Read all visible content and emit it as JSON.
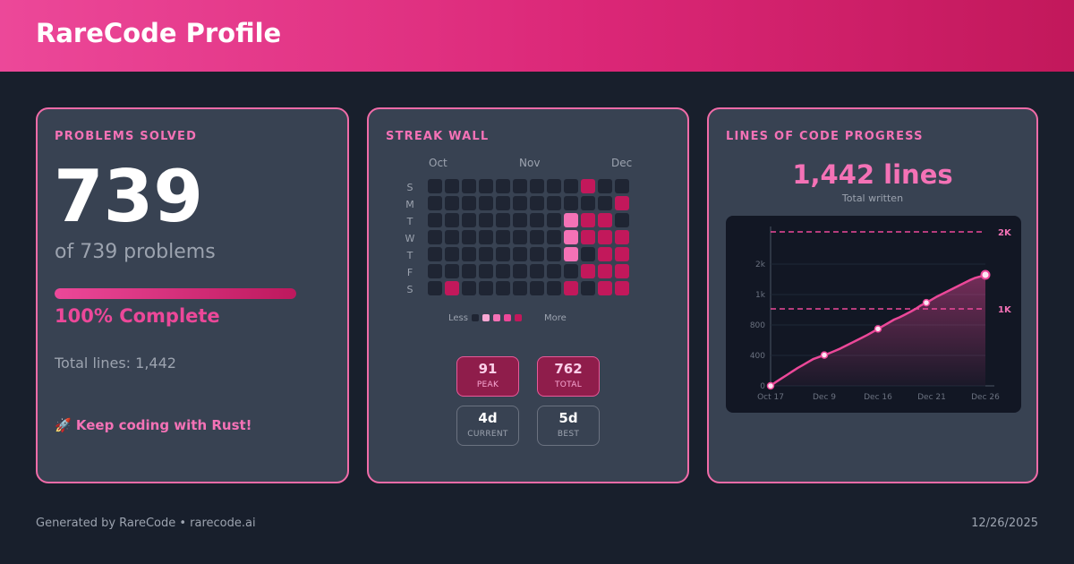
{
  "header": {
    "title": "RareCode Profile",
    "accent": "#ec4899"
  },
  "problems": {
    "title": "PROBLEMS SOLVED",
    "solved": "739",
    "of_text": "of 739 problems",
    "progress": 1.0,
    "percent_text": "100% Complete",
    "total_lines_text": "Total lines: 1,442",
    "motto": "🚀 Keep coding with Rust!"
  },
  "streak": {
    "title": "STREAK WALL",
    "months": [
      "Oct",
      "Nov",
      "Dec"
    ],
    "days": [
      "S",
      "M",
      "T",
      "W",
      "T",
      "F",
      "S"
    ],
    "grid": [
      [
        0,
        0,
        0,
        0,
        0,
        0,
        0,
        0,
        0,
        4,
        0,
        0
      ],
      [
        0,
        0,
        0,
        0,
        0,
        0,
        0,
        0,
        0,
        0,
        0,
        4
      ],
      [
        0,
        0,
        0,
        0,
        0,
        0,
        0,
        0,
        2,
        4,
        4,
        0
      ],
      [
        0,
        0,
        0,
        0,
        0,
        0,
        0,
        0,
        2,
        4,
        4,
        4
      ],
      [
        0,
        0,
        0,
        0,
        0,
        0,
        0,
        0,
        2,
        0,
        4,
        4
      ],
      [
        0,
        0,
        0,
        0,
        0,
        0,
        0,
        0,
        0,
        4,
        4,
        4
      ],
      [
        0,
        4,
        0,
        0,
        0,
        0,
        0,
        0,
        4,
        0,
        4,
        4
      ]
    ],
    "legend": {
      "less": "Less",
      "more": "More"
    },
    "stats": [
      {
        "value": "91",
        "label": "PEAK"
      },
      {
        "value": "762",
        "label": "TOTAL"
      },
      {
        "value": "4d",
        "label": "CURRENT"
      },
      {
        "value": "5d",
        "label": "BEST"
      }
    ]
  },
  "loc": {
    "title": "LINES OF CODE PROGRESS",
    "total_text": "1,442 lines",
    "subtitle": "Total written"
  },
  "chart_data": {
    "type": "area",
    "x": [
      0,
      1,
      2,
      3,
      4,
      5,
      6,
      7,
      8,
      9,
      10,
      11,
      12,
      13,
      14,
      15,
      16,
      17,
      18,
      19,
      20,
      21,
      22,
      23,
      24,
      25,
      26,
      27,
      28,
      29,
      30,
      31,
      32,
      33,
      34,
      35,
      36,
      37,
      38,
      39,
      40
    ],
    "y": [
      0,
      50,
      95,
      140,
      185,
      230,
      270,
      310,
      350,
      375,
      400,
      425,
      455,
      485,
      520,
      555,
      590,
      625,
      660,
      700,
      740,
      780,
      820,
      860,
      890,
      925,
      960,
      1000,
      1045,
      1080,
      1120,
      1160,
      1195,
      1230,
      1265,
      1300,
      1335,
      1370,
      1400,
      1420,
      1442
    ],
    "xticks": [
      {
        "x": 0,
        "label": "Oct 17"
      },
      {
        "x": 10,
        "label": "Dec 9"
      },
      {
        "x": 20,
        "label": "Dec 16"
      },
      {
        "x": 30,
        "label": "Dec 21"
      },
      {
        "x": 40,
        "label": "Dec 26"
      }
    ],
    "yticks": [
      {
        "y": 0,
        "label": "0"
      },
      {
        "y": 400,
        "label": "400"
      },
      {
        "y": 800,
        "label": "800"
      },
      {
        "y": 1200,
        "label": "1k"
      },
      {
        "y": 1600,
        "label": "2k"
      }
    ],
    "ylim": [
      0,
      2000
    ],
    "thresholds": [
      {
        "y": 1000,
        "label": "1K"
      },
      {
        "y": 2000,
        "label": "2K"
      }
    ],
    "markers": [
      0,
      10,
      20,
      29,
      40
    ],
    "line_color": "#ec4899"
  },
  "footer": {
    "left": "Generated by RareCode • rarecode.ai",
    "right": "12/26/2025"
  }
}
